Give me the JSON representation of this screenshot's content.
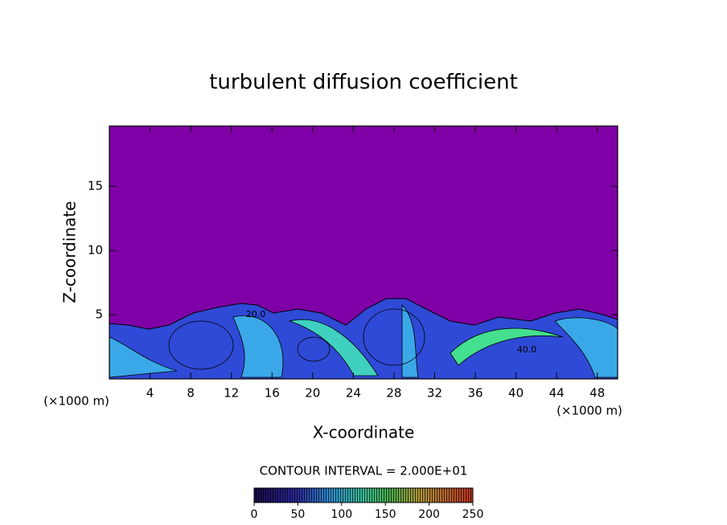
{
  "chart_data": {
    "type": "contour",
    "title": "turbulent diffusion coefficient",
    "x_label": "X-coordinate",
    "y_label": "Z-coordinate",
    "x_unit": "(×1000 m)",
    "y_unit": "(×1000 m)",
    "xlim": [
      0,
      50
    ],
    "ylim": [
      0,
      19.7
    ],
    "xticks": [
      4,
      8,
      12,
      16,
      20,
      24,
      28,
      32,
      36,
      40,
      44,
      48
    ],
    "yticks": [
      5,
      10,
      15
    ],
    "contour_interval": "CONTOUR INTERVAL = 2.000E+01",
    "contour_labels": [
      "20.0",
      "40.0"
    ],
    "colorbar": {
      "lim": [
        0,
        250
      ],
      "ticks": [
        0,
        50,
        100,
        150,
        200,
        250
      ]
    }
  }
}
